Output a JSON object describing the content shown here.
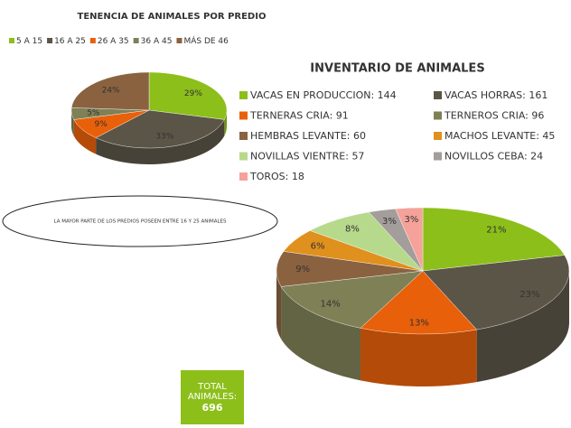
{
  "chart_data": [
    {
      "type": "pie",
      "title": "TENENCIA DE ANIMALES POR PREDIO",
      "categories": [
        "5 A 15",
        "16 A 25",
        "26 A 35",
        "36 A 45",
        "MÁS DE 46"
      ],
      "values": [
        29,
        33,
        9,
        5,
        24
      ],
      "value_labels": [
        "29%",
        "33%",
        "9%",
        "5%",
        "24%"
      ],
      "colors": [
        "#8cbf1a",
        "#5b5547",
        "#e8600a",
        "#7f8056",
        "#8a6240"
      ],
      "annotation": "LA MAYOR  PARTE DE LOS PREDIOS  POSEEN ENTRE 16 Y 25 ANIMALES"
    },
    {
      "type": "pie",
      "title": "INVENTARIO DE ANIMALES",
      "categories": [
        "VACAS EN PRODUCCION: 144",
        "VACAS HORRAS: 161",
        "TERNERAS CRIA: 91",
        "TERNEROS CRIA: 96",
        "HEMBRAS LEVANTE: 60",
        "MACHOS LEVANTE: 45",
        "NOVILLAS VIENTRE: 57",
        "NOVILLOS CEBA: 24",
        "TOROS: 18"
      ],
      "values": [
        21,
        23,
        13,
        14,
        9,
        6,
        8,
        3,
        3
      ],
      "value_labels": [
        "21%",
        "23%",
        "13%",
        "14%",
        "9%",
        "6%",
        "8%",
        "3%",
        "3%"
      ],
      "colors": [
        "#8cbf1a",
        "#5b5547",
        "#e8600a",
        "#7f8056",
        "#8a6240",
        "#e0901c",
        "#b7d98c",
        "#a39d9b",
        "#f4a29a"
      ],
      "total_label": "TOTAL ANIMALES:",
      "total_value": 696
    }
  ]
}
